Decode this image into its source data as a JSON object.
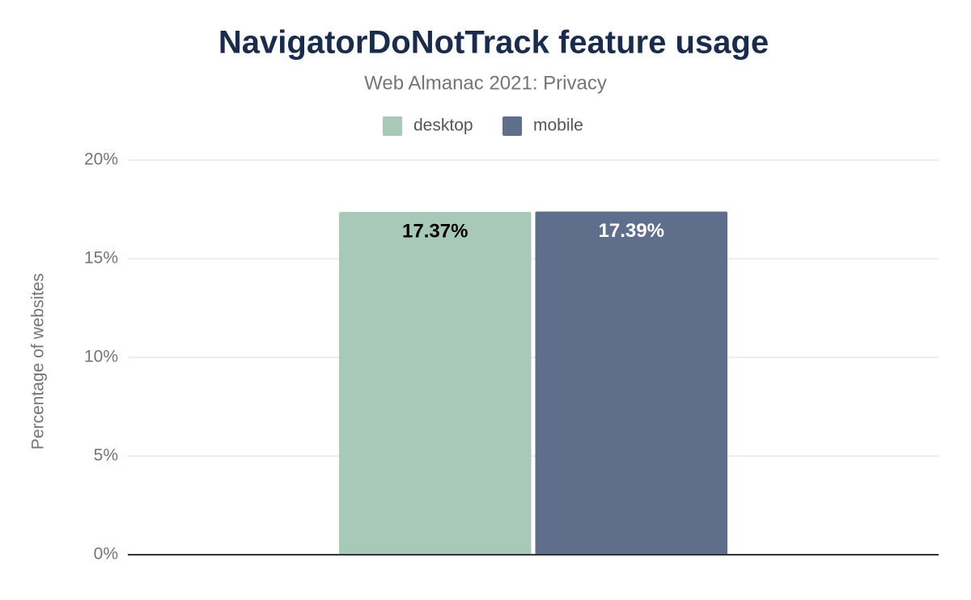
{
  "chart_data": {
    "type": "bar",
    "title": "NavigatorDoNotTrack feature usage",
    "subtitle": "Web Almanac 2021: Privacy",
    "y_label": "Percentage of websites",
    "categories": [
      null
    ],
    "series": [
      {
        "name": "desktop",
        "color": "#a8c8b8",
        "values": [
          17.37
        ],
        "value_labels": [
          "17.37%"
        ]
      },
      {
        "name": "mobile",
        "color": "#5f6f8b",
        "values": [
          17.39
        ],
        "value_labels": [
          "17.39%"
        ]
      }
    ],
    "ylim": [
      0,
      20
    ],
    "yticks": [
      {
        "value": 0,
        "label": "0%"
      },
      {
        "value": 5,
        "label": "5%"
      },
      {
        "value": 10,
        "label": "10%"
      },
      {
        "value": 15,
        "label": "15%"
      },
      {
        "value": 20,
        "label": "20%"
      }
    ],
    "grid": true,
    "legend": "top"
  }
}
